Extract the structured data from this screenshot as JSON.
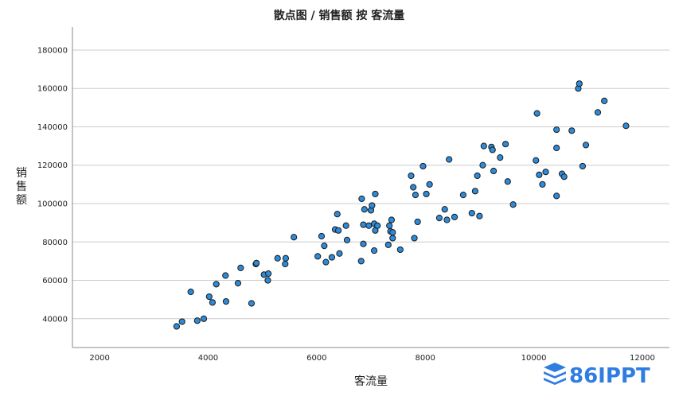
{
  "chart_data": {
    "type": "scatter",
    "title": "散点图 / 销售额 按 客流量",
    "xlabel": "客流量",
    "ylabel": "销售额",
    "xlim": [
      1500,
      12500
    ],
    "ylim": [
      25000,
      192000
    ],
    "x_ticks": [
      2000,
      4000,
      6000,
      8000,
      10000,
      12000
    ],
    "y_ticks": [
      40000,
      60000,
      80000,
      100000,
      120000,
      140000,
      160000,
      180000
    ],
    "grid": true,
    "point_color": "#2e8bd9",
    "points": [
      {
        "x": 3420,
        "y": 36000
      },
      {
        "x": 3520,
        "y": 38500
      },
      {
        "x": 3680,
        "y": 54000
      },
      {
        "x": 3800,
        "y": 39000
      },
      {
        "x": 3920,
        "y": 40000
      },
      {
        "x": 4020,
        "y": 51500
      },
      {
        "x": 4080,
        "y": 48500
      },
      {
        "x": 4150,
        "y": 58000
      },
      {
        "x": 4320,
        "y": 62500
      },
      {
        "x": 4330,
        "y": 49000
      },
      {
        "x": 4550,
        "y": 58500
      },
      {
        "x": 4600,
        "y": 66500
      },
      {
        "x": 4800,
        "y": 48000
      },
      {
        "x": 4880,
        "y": 68500
      },
      {
        "x": 4890,
        "y": 69000
      },
      {
        "x": 5030,
        "y": 63000
      },
      {
        "x": 5100,
        "y": 60000
      },
      {
        "x": 5110,
        "y": 63500
      },
      {
        "x": 5280,
        "y": 71500
      },
      {
        "x": 5420,
        "y": 68500
      },
      {
        "x": 5430,
        "y": 71500
      },
      {
        "x": 5580,
        "y": 82500
      },
      {
        "x": 6020,
        "y": 72500
      },
      {
        "x": 6090,
        "y": 83000
      },
      {
        "x": 6140,
        "y": 78000
      },
      {
        "x": 6170,
        "y": 69500
      },
      {
        "x": 6280,
        "y": 72000
      },
      {
        "x": 6340,
        "y": 86500
      },
      {
        "x": 6380,
        "y": 94500
      },
      {
        "x": 6400,
        "y": 86000
      },
      {
        "x": 6420,
        "y": 74000
      },
      {
        "x": 6540,
        "y": 88500
      },
      {
        "x": 6560,
        "y": 81000
      },
      {
        "x": 6820,
        "y": 70000
      },
      {
        "x": 6830,
        "y": 102500
      },
      {
        "x": 6860,
        "y": 89000
      },
      {
        "x": 6860,
        "y": 79000
      },
      {
        "x": 6880,
        "y": 97000
      },
      {
        "x": 6960,
        "y": 88500
      },
      {
        "x": 7000,
        "y": 96500
      },
      {
        "x": 7020,
        "y": 99000
      },
      {
        "x": 7060,
        "y": 89500
      },
      {
        "x": 7060,
        "y": 75500
      },
      {
        "x": 7080,
        "y": 105000
      },
      {
        "x": 7080,
        "y": 86000
      },
      {
        "x": 7120,
        "y": 88500
      },
      {
        "x": 7320,
        "y": 78500
      },
      {
        "x": 7340,
        "y": 88500
      },
      {
        "x": 7360,
        "y": 85500
      },
      {
        "x": 7380,
        "y": 91500
      },
      {
        "x": 7400,
        "y": 82000
      },
      {
        "x": 7400,
        "y": 85000
      },
      {
        "x": 7540,
        "y": 76000
      },
      {
        "x": 7740,
        "y": 114500
      },
      {
        "x": 7780,
        "y": 108500
      },
      {
        "x": 7800,
        "y": 82000
      },
      {
        "x": 7820,
        "y": 104500
      },
      {
        "x": 7860,
        "y": 90500
      },
      {
        "x": 7960,
        "y": 119500
      },
      {
        "x": 8020,
        "y": 105000
      },
      {
        "x": 8080,
        "y": 110000
      },
      {
        "x": 8260,
        "y": 92500
      },
      {
        "x": 8360,
        "y": 97000
      },
      {
        "x": 8400,
        "y": 91500
      },
      {
        "x": 8440,
        "y": 123000
      },
      {
        "x": 8540,
        "y": 93000
      },
      {
        "x": 8700,
        "y": 104500
      },
      {
        "x": 8860,
        "y": 95000
      },
      {
        "x": 8920,
        "y": 106500
      },
      {
        "x": 8960,
        "y": 114500
      },
      {
        "x": 9000,
        "y": 93500
      },
      {
        "x": 9060,
        "y": 120000
      },
      {
        "x": 9080,
        "y": 130000
      },
      {
        "x": 9220,
        "y": 129500
      },
      {
        "x": 9240,
        "y": 128000
      },
      {
        "x": 9260,
        "y": 117000
      },
      {
        "x": 9380,
        "y": 124000
      },
      {
        "x": 9480,
        "y": 131000
      },
      {
        "x": 9520,
        "y": 111500
      },
      {
        "x": 9620,
        "y": 99500
      },
      {
        "x": 10040,
        "y": 122500
      },
      {
        "x": 10060,
        "y": 147000
      },
      {
        "x": 10100,
        "y": 115000
      },
      {
        "x": 10160,
        "y": 110000
      },
      {
        "x": 10220,
        "y": 116500
      },
      {
        "x": 10420,
        "y": 138500
      },
      {
        "x": 10420,
        "y": 129000
      },
      {
        "x": 10420,
        "y": 104000
      },
      {
        "x": 10520,
        "y": 115500
      },
      {
        "x": 10560,
        "y": 114000
      },
      {
        "x": 10700,
        "y": 138000
      },
      {
        "x": 10820,
        "y": 160000
      },
      {
        "x": 10840,
        "y": 162500
      },
      {
        "x": 10900,
        "y": 119500
      },
      {
        "x": 10960,
        "y": 130500
      },
      {
        "x": 11180,
        "y": 147500
      },
      {
        "x": 11300,
        "y": 153500
      },
      {
        "x": 11700,
        "y": 140500
      }
    ]
  },
  "watermark": {
    "text": "86IPPT",
    "color": "#2f7de1"
  }
}
